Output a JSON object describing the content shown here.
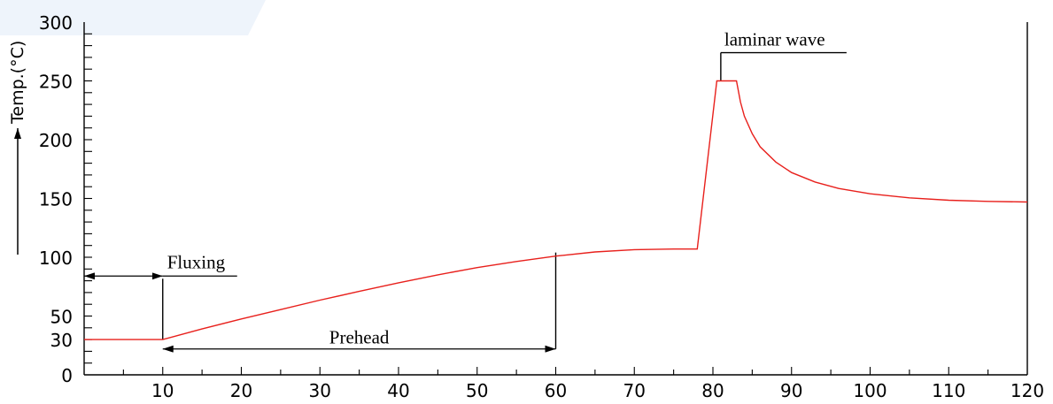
{
  "chart_data": {
    "type": "line",
    "ylabel": "Temp.(°C)",
    "xlim": [
      0,
      120
    ],
    "ylim": [
      0,
      300
    ],
    "x_ticks": [
      10,
      20,
      30,
      40,
      50,
      60,
      70,
      80,
      90,
      100,
      110,
      120
    ],
    "y_ticks": [
      0,
      30,
      50,
      100,
      150,
      200,
      250,
      300
    ],
    "series": [
      {
        "color": "#e8201c",
        "points": [
          [
            0,
            30
          ],
          [
            10,
            30
          ],
          [
            15,
            39
          ],
          [
            20,
            47.5
          ],
          [
            25,
            55.5
          ],
          [
            30,
            63.5
          ],
          [
            35,
            71
          ],
          [
            40,
            78.3
          ],
          [
            45,
            85
          ],
          [
            50,
            91.2
          ],
          [
            55,
            96.4
          ],
          [
            60,
            101
          ],
          [
            65,
            104.5
          ],
          [
            70,
            106.5
          ],
          [
            75,
            107
          ],
          [
            78,
            107
          ],
          [
            80.5,
            250
          ],
          [
            83,
            250
          ],
          [
            83.5,
            232
          ],
          [
            84,
            220
          ],
          [
            85,
            205
          ],
          [
            86,
            194
          ],
          [
            88,
            181
          ],
          [
            90,
            172
          ],
          [
            93,
            164
          ],
          [
            96,
            158.5
          ],
          [
            100,
            154
          ],
          [
            105,
            150.5
          ],
          [
            110,
            148.5
          ],
          [
            115,
            147.5
          ],
          [
            120,
            147
          ]
        ]
      }
    ],
    "annotations": [
      {
        "text": "laminar wave",
        "type": "label",
        "x_start": 81,
        "x_end": 97,
        "y": 274
      },
      {
        "text": "Fluxing",
        "type": "interval",
        "x_start": 0,
        "x_end": 10,
        "y_line": 84
      },
      {
        "text": "Prehead",
        "type": "interval",
        "x_start": 10,
        "x_end": 60,
        "y_line": 22
      }
    ]
  }
}
